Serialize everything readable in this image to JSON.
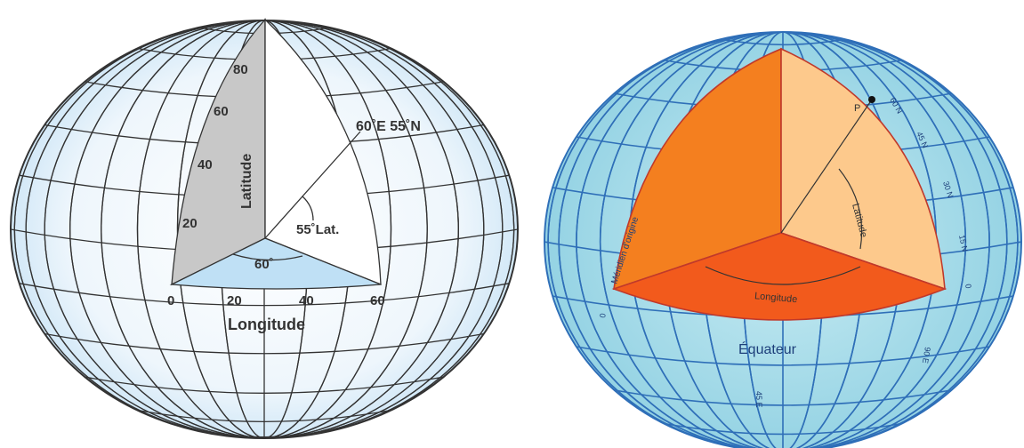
{
  "left_globe": {
    "latitude_ticks": [
      80,
      60,
      40,
      20
    ],
    "latitude_label": "Latitude",
    "point_label": "60˚E 55˚N",
    "latitude_angle": "55˚Lat.",
    "longitude_angle": "60˚",
    "longitude_ticks": [
      0,
      20,
      40,
      60
    ],
    "longitude_label": "Longitude"
  },
  "right_globe": {
    "point_label": "P",
    "latitude_label": "Latitude",
    "longitude_label": "Longitude",
    "equator_label": "Équateur",
    "meridian_label": "Méridien d'origine",
    "meridian_zero": "0",
    "parallel_labels": [
      "60 N",
      "45 N",
      "30 N",
      "15 N",
      "0"
    ],
    "meridian_labels": [
      "90 E",
      "45 E"
    ]
  }
}
